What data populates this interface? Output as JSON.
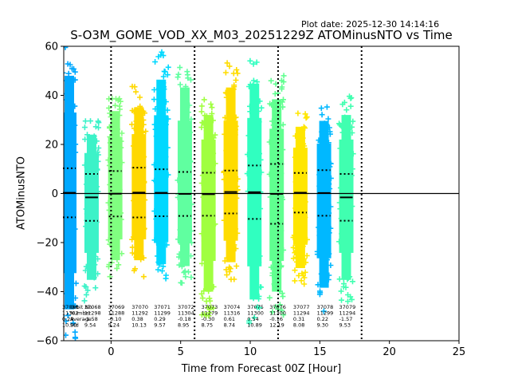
{
  "plot_date": "Plot date: 2025-12-30 14:14:16",
  "chart_data": {
    "type": "scatter",
    "title": "S-O3M_GOME_VOD_XX_M03_20251229Z ATOMinusNTO vs Time",
    "xlabel": "Time from Forecast 00Z [Hour]",
    "ylabel": "ATOMinusNTO",
    "xlim": [
      -3.4,
      25
    ],
    "ylim": [
      -60,
      60
    ],
    "xticks": [
      0,
      5,
      10,
      15,
      20,
      25
    ],
    "yticks": [
      -60,
      -40,
      -20,
      0,
      20,
      40,
      60
    ],
    "zero_line": 0,
    "vertical_dotted_lines": [
      0,
      6,
      12,
      18
    ],
    "marker": "+",
    "legend_labels": [
      "Orbit No.",
      "Number",
      "Average",
      "Std"
    ],
    "orbits": [
      {
        "x": -3.0,
        "orbit": "37066",
        "number": "11302",
        "mean": 0.29,
        "std": 10.0,
        "min": -59,
        "max": 60,
        "color": "#00a8ff"
      },
      {
        "x": -1.4,
        "orbit": "37068",
        "number": "11298",
        "mean": -1.58,
        "std": 9.54,
        "min": -44,
        "max": 30,
        "color": "#3cf2c8"
      },
      {
        "x": 0.3,
        "orbit": "37069",
        "number": "11288",
        "mean": -0.1,
        "std": 9.24,
        "min": -34,
        "max": 42,
        "color": "#80ff80"
      },
      {
        "x": 2.0,
        "orbit": "37070",
        "number": "11292",
        "mean": 0.38,
        "std": 10.13,
        "min": -34,
        "max": 44,
        "color": "#ffd800"
      },
      {
        "x": 3.6,
        "orbit": "37071",
        "number": "11299",
        "mean": 0.29,
        "std": 9.57,
        "min": -36,
        "max": 58,
        "color": "#00d8ff"
      },
      {
        "x": 5.3,
        "orbit": "37072",
        "number": "11304",
        "mean": -0.18,
        "std": 8.95,
        "min": -37,
        "max": 54,
        "color": "#60ffa0"
      },
      {
        "x": 7.0,
        "orbit": "37073",
        "number": "11279",
        "mean": -0.3,
        "std": 8.75,
        "min": -50,
        "max": 40,
        "color": "#a0ff40"
      },
      {
        "x": 8.6,
        "orbit": "37074",
        "number": "11316",
        "mean": 0.61,
        "std": 8.74,
        "min": -35,
        "max": 54,
        "color": "#ffdc00"
      },
      {
        "x": 10.3,
        "orbit": "37075",
        "number": "11300",
        "mean": 0.54,
        "std": 10.89,
        "min": -54,
        "max": 56,
        "color": "#30ffc0"
      },
      {
        "x": 11.9,
        "orbit": "37076",
        "number": "11300",
        "mean": -0.16,
        "std": 12.19,
        "min": -50,
        "max": 48,
        "color": "#60ff90"
      },
      {
        "x": 13.6,
        "orbit": "37077",
        "number": "11294",
        "mean": 0.31,
        "std": 8.08,
        "min": -38,
        "max": 34,
        "color": "#ffe600"
      },
      {
        "x": 15.3,
        "orbit": "37078",
        "number": "11299",
        "mean": 0.22,
        "std": 9.3,
        "min": -48,
        "max": 37,
        "color": "#00b8ff"
      },
      {
        "x": 16.9,
        "orbit": "37079",
        "number": "11294",
        "mean": -1.57,
        "std": 9.53,
        "min": -44,
        "max": 40,
        "color": "#40ffb0"
      }
    ]
  }
}
